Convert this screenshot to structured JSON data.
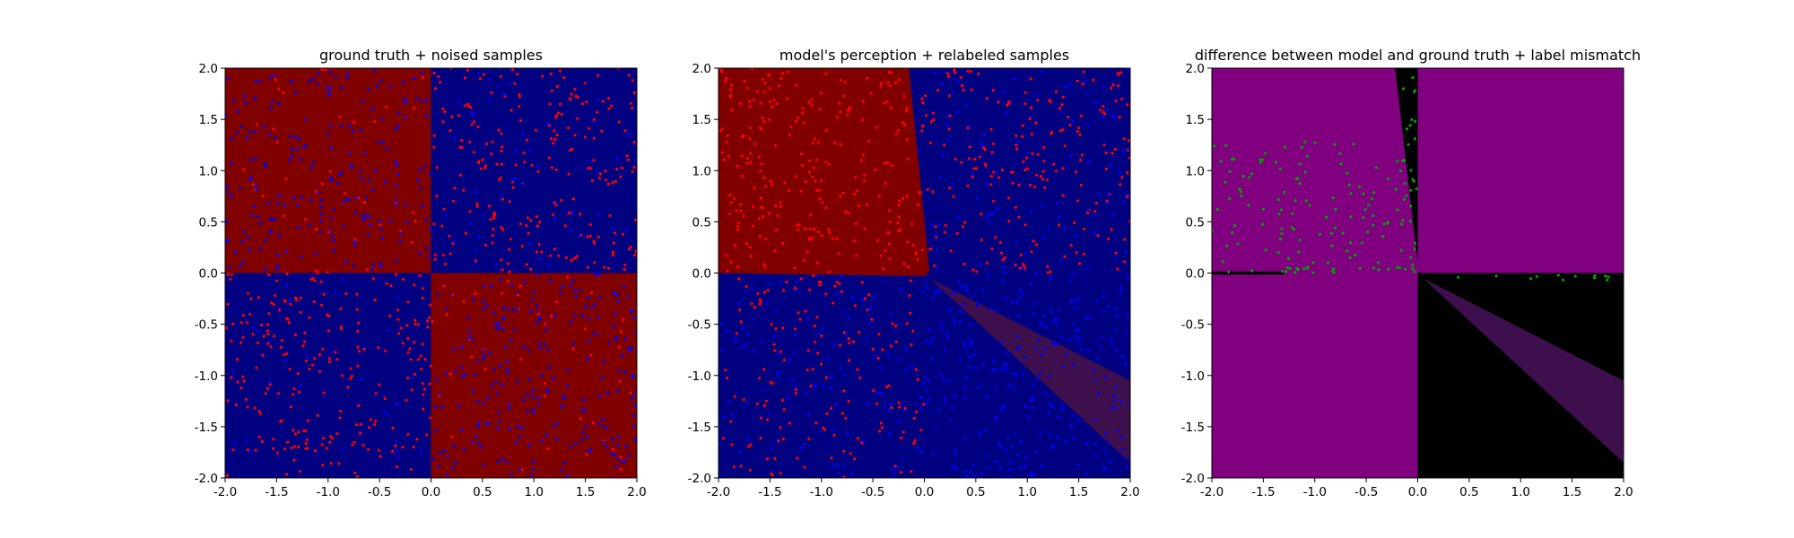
{
  "chart_data": [
    {
      "type": "heatmap",
      "title": "ground truth + noised samples",
      "xlim": [
        -2.0,
        2.0
      ],
      "ylim": [
        -2.0,
        2.0
      ],
      "xticks": [
        "-2.0",
        "-1.5",
        "-1.0",
        "-0.5",
        "0.0",
        "0.5",
        "1.0",
        "1.5",
        "2.0"
      ],
      "yticks": [
        "-2.0",
        "-1.5",
        "-1.0",
        "-0.5",
        "0.0",
        "0.5",
        "1.0",
        "1.5",
        "2.0"
      ],
      "background_color": "#000080",
      "regions": [
        {
          "color": "#800000",
          "polygon": [
            [
              -2.0,
              0.0
            ],
            [
              0.0,
              0.0
            ],
            [
              0.0,
              2.0
            ],
            [
              -2.0,
              2.0
            ]
          ]
        },
        {
          "color": "#800000",
          "polygon": [
            [
              0.0,
              -2.0
            ],
            [
              2.0,
              -2.0
            ],
            [
              2.0,
              0.0
            ],
            [
              0.0,
              0.0
            ]
          ]
        }
      ],
      "scatter": {
        "style": "noised-xor",
        "colors": [
          "#ff0000",
          "#0000ff"
        ]
      },
      "grid": false,
      "legend": "none"
    },
    {
      "type": "heatmap",
      "title": "model's perception + relabeled samples",
      "xlim": [
        -2.0,
        2.0
      ],
      "ylim": [
        -2.0,
        2.0
      ],
      "xticks": [
        "-2.0",
        "-1.5",
        "-1.0",
        "-0.5",
        "0.0",
        "0.5",
        "1.0",
        "1.5",
        "2.0"
      ],
      "yticks": [
        "-2.0",
        "-1.5",
        "-1.0",
        "-0.5",
        "0.0",
        "0.5",
        "1.0",
        "1.5",
        "2.0"
      ],
      "background_color": "#000080",
      "regions": [
        {
          "color": "#800000",
          "polygon": [
            [
              -2.0,
              0.0
            ],
            [
              0.0,
              -0.03
            ],
            [
              0.05,
              0.02
            ],
            [
              -0.15,
              2.0
            ],
            [
              -2.0,
              2.0
            ]
          ]
        },
        {
          "color": "#3d0f4d",
          "polygon": [
            [
              0.05,
              -0.05
            ],
            [
              2.0,
              -1.05
            ],
            [
              2.0,
              -1.85
            ]
          ]
        }
      ],
      "scatter": {
        "style": "model-relabeled",
        "colors": [
          "#ff0000",
          "#0000ff"
        ]
      },
      "grid": false,
      "legend": "none"
    },
    {
      "type": "heatmap",
      "title": "difference between model and ground truth + label mismatch",
      "xlim": [
        -2.0,
        2.0
      ],
      "ylim": [
        -2.0,
        2.0
      ],
      "xticks": [
        "-2.0",
        "-1.5",
        "-1.0",
        "-0.5",
        "0.0",
        "0.5",
        "1.0",
        "1.5",
        "2.0"
      ],
      "yticks": [
        "-2.0",
        "-1.5",
        "-1.0",
        "-0.5",
        "0.0",
        "0.5",
        "1.0",
        "1.5",
        "2.0"
      ],
      "background_color": "#800080",
      "regions": [
        {
          "color": "#000000",
          "polygon": [
            [
              0.0,
              -2.0
            ],
            [
              2.0,
              -2.0
            ],
            [
              2.0,
              0.0
            ],
            [
              0.0,
              0.0
            ]
          ]
        },
        {
          "color": "#000000",
          "polygon": [
            [
              -0.22,
              2.0
            ],
            [
              0.0,
              2.0
            ],
            [
              0.0,
              0.1
            ]
          ]
        },
        {
          "color": "#000000",
          "polygon": [
            [
              -2.0,
              0.015
            ],
            [
              -1.3,
              0.015
            ],
            [
              -1.3,
              -0.015
            ],
            [
              -2.0,
              -0.015
            ]
          ]
        },
        {
          "color": "#3d0f4d",
          "polygon": [
            [
              0.05,
              -0.05
            ],
            [
              2.0,
              -1.05
            ],
            [
              2.0,
              -1.85
            ]
          ]
        }
      ],
      "scatter": {
        "style": "mismatch",
        "colors": [
          "#00a000"
        ]
      },
      "grid": false,
      "legend": "none"
    }
  ]
}
